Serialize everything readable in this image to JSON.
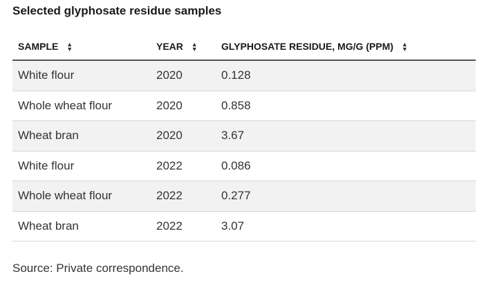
{
  "title": "Selected glyphosate residue samples",
  "table": {
    "headers": [
      {
        "label": "SAMPLE"
      },
      {
        "label": "YEAR"
      },
      {
        "label": "GLYPHOSATE RESIDUE, MG/G (PPM)"
      }
    ],
    "rows": [
      [
        "White flour",
        "2020",
        "0.128"
      ],
      [
        "Whole wheat flour",
        "2020",
        "0.858"
      ],
      [
        "Wheat bran",
        "2020",
        "3.67"
      ],
      [
        "White flour",
        "2022",
        "0.086"
      ],
      [
        "Whole wheat flour",
        "2022",
        "0.277"
      ],
      [
        "Wheat bran",
        "2022",
        "3.07"
      ]
    ]
  },
  "source": "Source: Private correspondence."
}
